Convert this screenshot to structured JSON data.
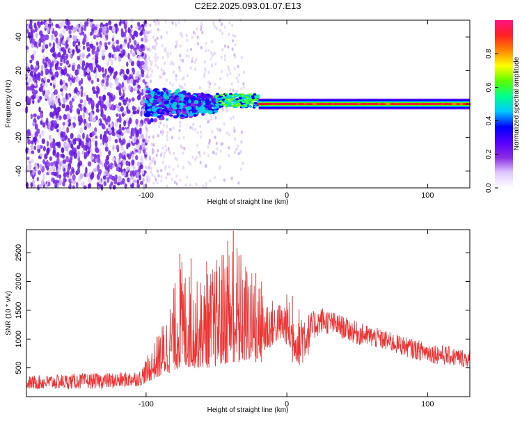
{
  "figure": {
    "title": "C2E2.2025.093.01.07.E13"
  },
  "chart_data": [
    {
      "type": "heatmap",
      "xlabel": "Height of straight line (km)",
      "ylabel": "Frequency (Hz)",
      "xlim": [
        -185,
        130
      ],
      "ylim": [
        -50,
        50
      ],
      "x_ticks": [
        -100,
        0,
        100
      ],
      "y_ticks": [
        -40,
        -20,
        0,
        20,
        40
      ],
      "grid": false,
      "colorbar": {
        "label": "Normalized spectral amplitude",
        "range": [
          0,
          1
        ],
        "ticks": [
          0.0,
          0.2,
          0.4,
          0.6,
          0.8
        ],
        "colors": [
          "#ffffff",
          "#e0c8ff",
          "#8a2be2",
          "#5500ff",
          "#0000ff",
          "#00c8ff",
          "#00ff90",
          "#5aff00",
          "#ffff00",
          "#ff8800",
          "#ff2020",
          "#ff1080"
        ]
      },
      "regions": [
        {
          "x_range": [
            -185,
            -100
          ],
          "freq_range": [
            -50,
            50
          ],
          "amplitude": "low, broadband noise",
          "color": "#7b2be0"
        },
        {
          "x_range": [
            -100,
            -50
          ],
          "freq_center": 0,
          "freq_halfwidth": 12,
          "amplitude": "mixed 0.1–0.5",
          "color": "#0000ff"
        },
        {
          "x_range": [
            -50,
            -20
          ],
          "freq_center": 2,
          "freq_halfwidth": 4,
          "amplitude": "0.4–0.9",
          "color": "#00ff90"
        },
        {
          "x_range": [
            -20,
            130
          ],
          "freq_center": 0,
          "freq_halfwidth": 2,
          "amplitude": "0.8–1.0",
          "color": "#ff2020"
        }
      ]
    },
    {
      "type": "line",
      "xlabel": "Height of straight line (km)",
      "ylabel": "SNR (10 * v/v)",
      "xlim": [
        -185,
        130
      ],
      "ylim": [
        0,
        2900
      ],
      "x_ticks": [
        -100,
        0,
        100
      ],
      "y_ticks": [
        500,
        1000,
        1500,
        2000,
        2500
      ],
      "grid": false,
      "series": [
        {
          "color": "#ee3333",
          "envelope": {
            "x": [
              -185,
              -150,
              -120,
              -105,
              -95,
              -85,
              -75,
              -65,
              -55,
              -45,
              -38,
              -30,
              -20,
              -10,
              -5,
              0,
              5,
              10,
              15,
              20,
              25,
              35,
              50,
              70,
              90,
              110,
              130
            ],
            "low": [
              120,
              130,
              140,
              180,
              300,
              400,
              500,
              500,
              500,
              550,
              600,
              600,
              650,
              900,
              1000,
              900,
              700,
              500,
              700,
              1000,
              1100,
              1050,
              900,
              800,
              650,
              550,
              500
            ],
            "high": [
              360,
              400,
              420,
              450,
              900,
              1500,
              2400,
              2000,
              2200,
              2600,
              2880,
              2400,
              2000,
              1700,
              1650,
              1800,
              1500,
              1600,
              1450,
              1500,
              1560,
              1450,
              1300,
              1150,
              1000,
              900,
              800
            ]
          },
          "peaks": [
            {
              "x": -38,
              "y": 2880
            },
            {
              "x": -42,
              "y": 2700
            },
            {
              "x": -76,
              "y": 2480
            },
            {
              "x": -68,
              "y": 2400
            },
            {
              "x": -57,
              "y": 2350
            },
            {
              "x": -34,
              "y": 2450
            },
            {
              "x": -22,
              "y": 2150
            },
            {
              "x": -18,
              "y": 2000
            },
            {
              "x": 4,
              "y": 1750
            }
          ]
        }
      ]
    }
  ]
}
